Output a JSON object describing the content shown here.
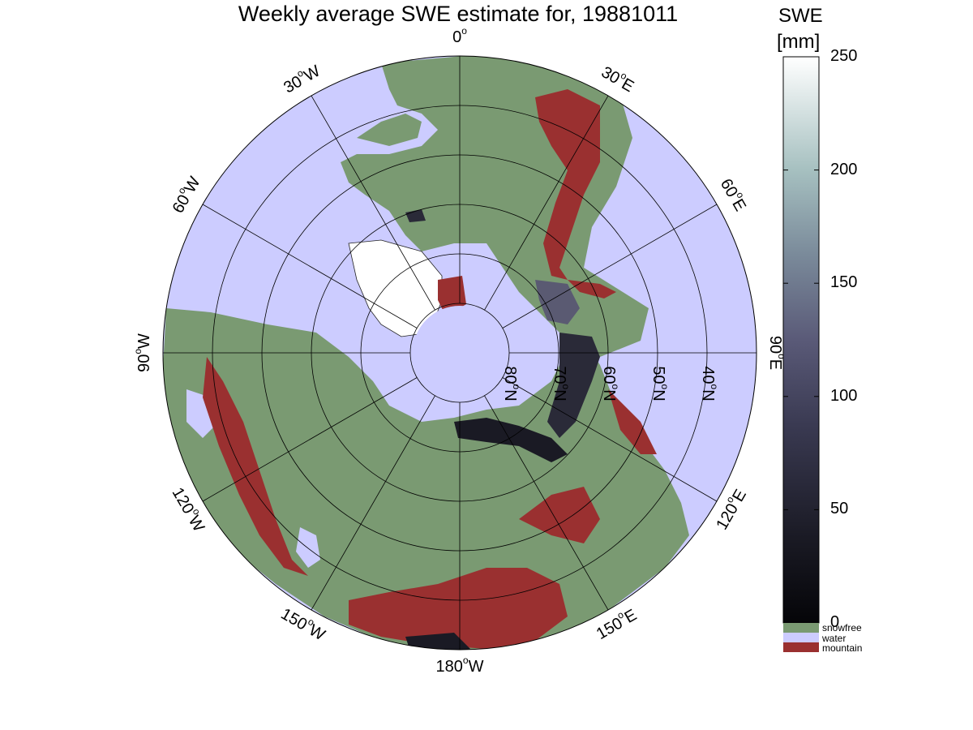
{
  "title": "Weekly average SWE estimate for, 19881011",
  "longitude_labels": [
    {
      "lon": -90,
      "text": "90",
      "suffix": "W"
    },
    {
      "lon": -60,
      "text": "60",
      "suffix": "W"
    },
    {
      "lon": -120,
      "text": "120",
      "suffix": "W"
    },
    {
      "lon": -30,
      "text": "30",
      "suffix": "W"
    },
    {
      "lon": -150,
      "text": "150",
      "suffix": "W"
    },
    {
      "lon": 0,
      "text": "0",
      "suffix": ""
    },
    {
      "lon": 180,
      "text": "180",
      "suffix": "W"
    },
    {
      "lon": 30,
      "text": "30",
      "suffix": "E"
    },
    {
      "lon": 150,
      "text": "150",
      "suffix": "E"
    },
    {
      "lon": 60,
      "text": "60",
      "suffix": "E"
    },
    {
      "lon": 120,
      "text": "120",
      "suffix": "E"
    },
    {
      "lon": 90,
      "text": "90",
      "suffix": "E"
    }
  ],
  "latitude_labels": [
    {
      "lat": 80,
      "text": "80",
      "suffix": "N"
    },
    {
      "lat": 70,
      "text": "70",
      "suffix": "N"
    },
    {
      "lat": 60,
      "text": "60",
      "suffix": "N"
    },
    {
      "lat": 50,
      "text": "50",
      "suffix": "N"
    },
    {
      "lat": 40,
      "text": "40",
      "suffix": "N"
    }
  ],
  "colorbar": {
    "title_line1": "SWE",
    "title_line2": "[mm]",
    "ticks": [
      "0",
      "50",
      "100",
      "150",
      "200",
      "250"
    ],
    "range": [
      0,
      250
    ]
  },
  "legend": [
    {
      "label": "snowfree",
      "color": "#7a9a72"
    },
    {
      "label": "water",
      "color": "#ccccff"
    },
    {
      "label": "mountain",
      "color": "#9a3030"
    }
  ],
  "colors": {
    "water": "#ccccff",
    "land": "#7a9a72",
    "mountain": "#9a3030",
    "snow_low": "#101018",
    "snow_mid": "#4a4a66",
    "snow_high": "#ffffff"
  }
}
